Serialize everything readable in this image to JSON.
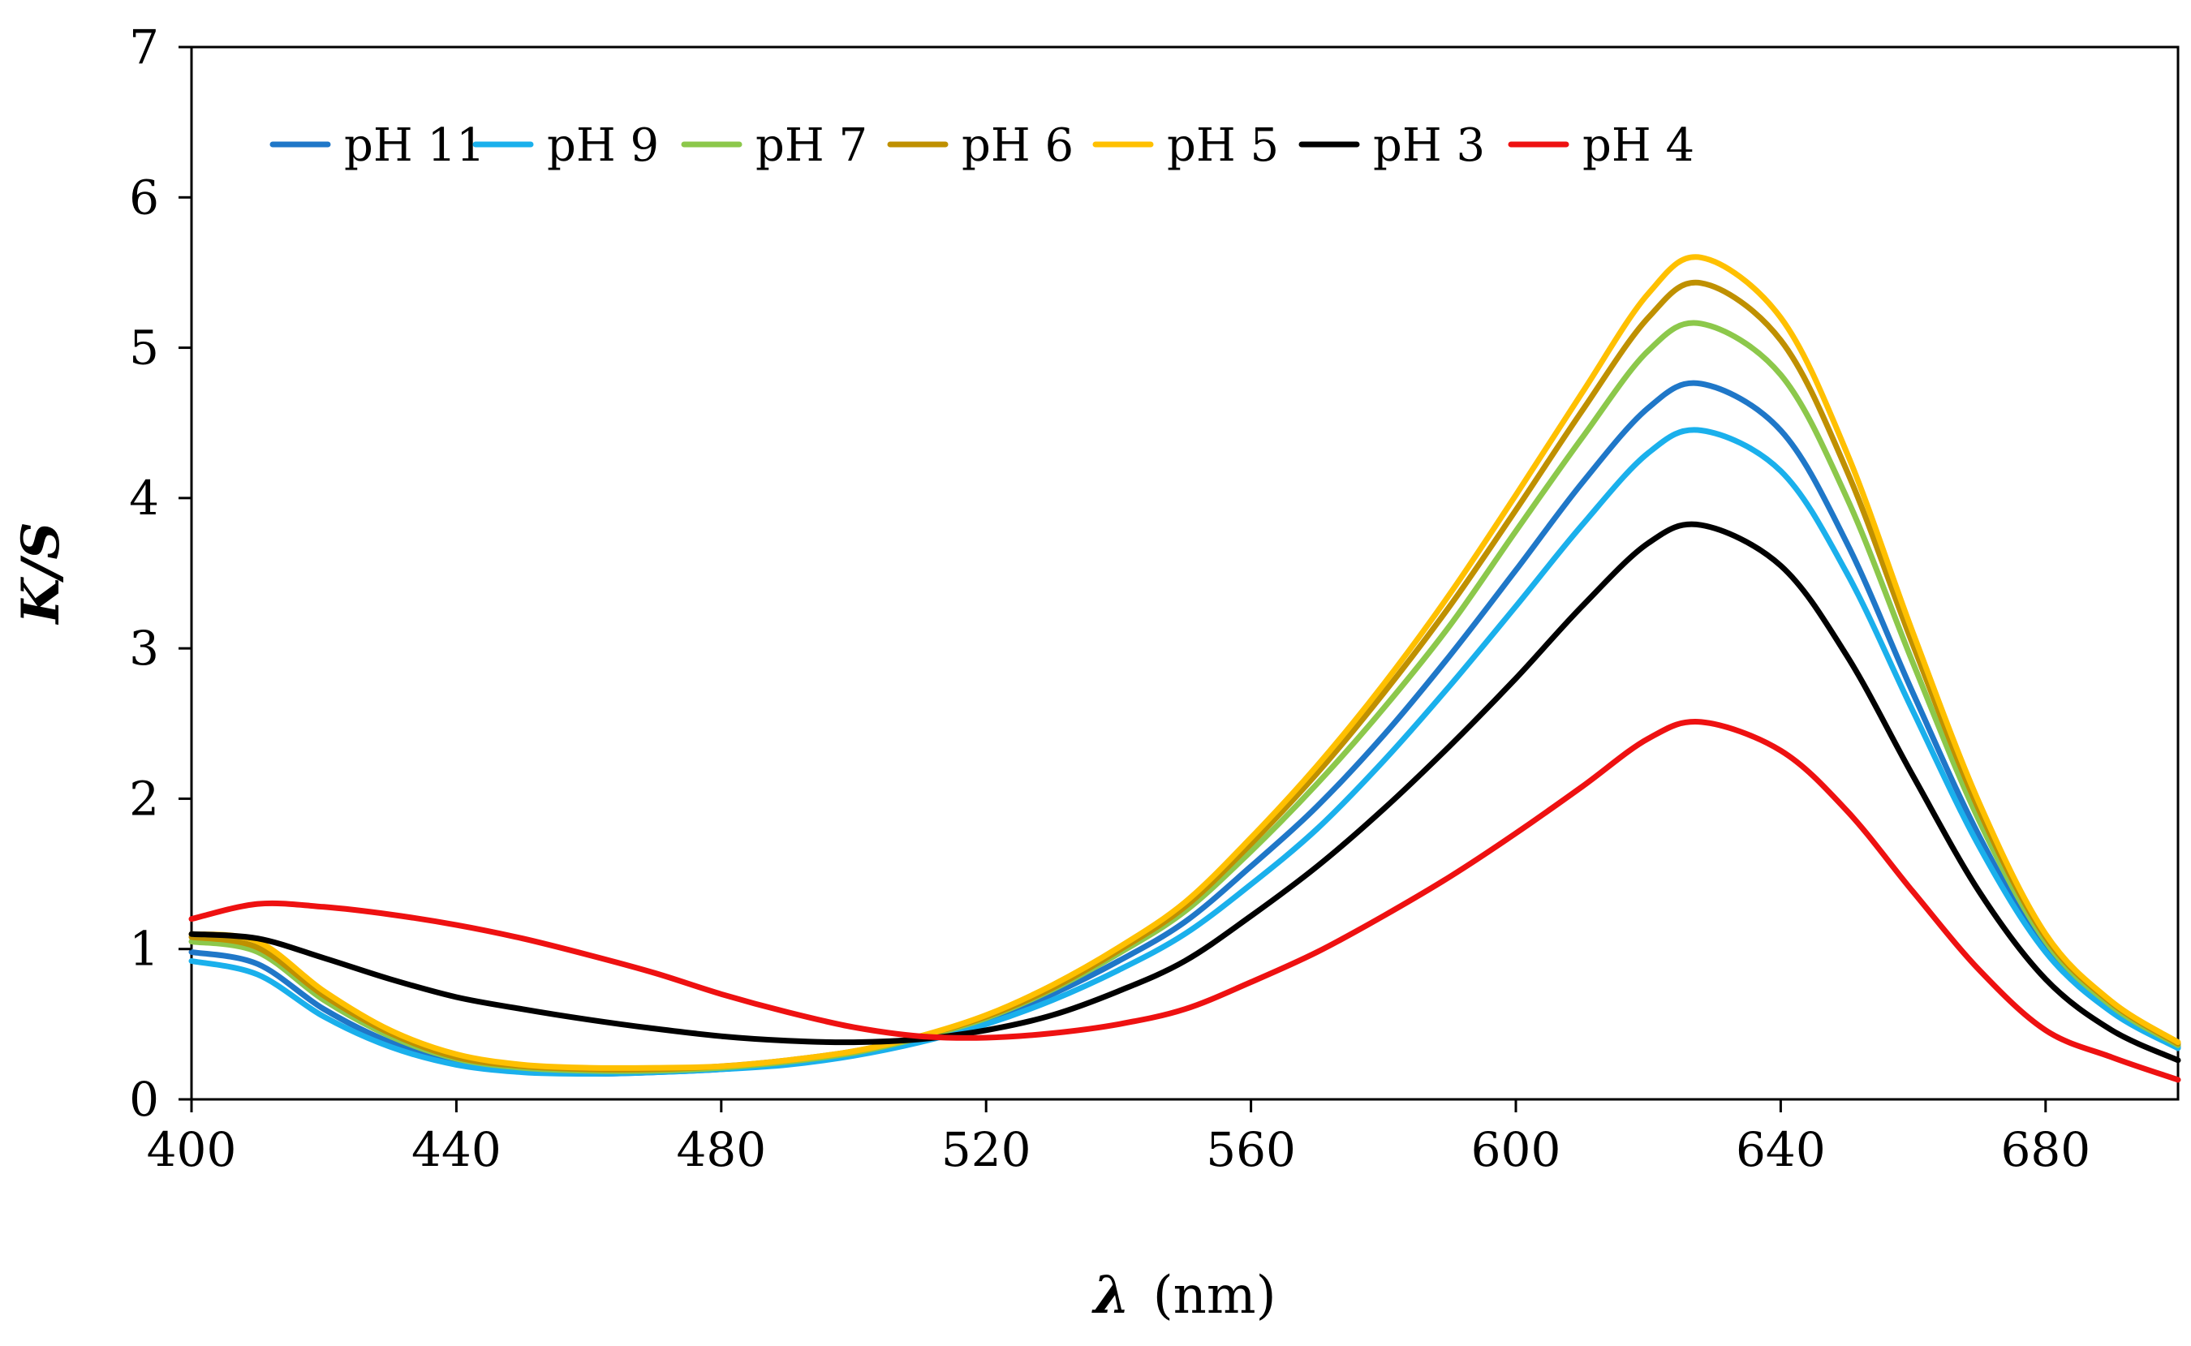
{
  "chart_data": {
    "type": "line",
    "title": "",
    "xlabel_symbol": "λ",
    "xlabel_unit": "(nm)",
    "ylabel": "K/S",
    "xlim": [
      400,
      700
    ],
    "ylim": [
      0,
      7
    ],
    "xticks": [
      400,
      440,
      480,
      520,
      560,
      600,
      640,
      680
    ],
    "yticks": [
      0,
      1,
      2,
      3,
      4,
      5,
      6,
      7
    ],
    "grid": false,
    "legend_position": "top-left",
    "x": [
      400,
      410,
      420,
      430,
      440,
      450,
      460,
      470,
      480,
      490,
      500,
      510,
      520,
      530,
      540,
      550,
      560,
      570,
      580,
      590,
      600,
      610,
      620,
      628,
      640,
      650,
      660,
      670,
      680,
      690,
      700
    ],
    "series": [
      {
        "name": "pH 11",
        "color": "#1f77c8",
        "values": [
          0.98,
          0.9,
          0.6,
          0.38,
          0.24,
          0.19,
          0.17,
          0.18,
          0.2,
          0.24,
          0.3,
          0.4,
          0.52,
          0.7,
          0.92,
          1.18,
          1.55,
          1.95,
          2.42,
          2.95,
          3.52,
          4.1,
          4.6,
          4.76,
          4.45,
          3.7,
          2.7,
          1.75,
          1.0,
          0.6,
          0.35
        ]
      },
      {
        "name": "pH 9",
        "color": "#1ab0ec",
        "values": [
          0.92,
          0.83,
          0.55,
          0.35,
          0.23,
          0.18,
          0.17,
          0.18,
          0.2,
          0.23,
          0.29,
          0.38,
          0.5,
          0.66,
          0.86,
          1.1,
          1.43,
          1.8,
          2.25,
          2.75,
          3.28,
          3.82,
          4.3,
          4.45,
          4.18,
          3.5,
          2.58,
          1.68,
          0.98,
          0.58,
          0.34
        ]
      },
      {
        "name": "pH 7",
        "color": "#8cc84b",
        "values": [
          1.05,
          0.98,
          0.66,
          0.42,
          0.27,
          0.21,
          0.19,
          0.19,
          0.21,
          0.25,
          0.31,
          0.41,
          0.54,
          0.73,
          0.97,
          1.25,
          1.65,
          2.1,
          2.6,
          3.15,
          3.78,
          4.4,
          4.98,
          5.16,
          4.82,
          4.0,
          2.9,
          1.85,
          1.05,
          0.62,
          0.36
        ]
      },
      {
        "name": "pH 6",
        "color": "#bf9000",
        "values": [
          1.08,
          1.01,
          0.69,
          0.44,
          0.28,
          0.22,
          0.2,
          0.2,
          0.22,
          0.26,
          0.32,
          0.42,
          0.55,
          0.74,
          0.99,
          1.28,
          1.7,
          2.17,
          2.7,
          3.28,
          3.92,
          4.58,
          5.2,
          5.43,
          5.05,
          4.18,
          3.02,
          1.92,
          1.08,
          0.64,
          0.37
        ]
      },
      {
        "name": "pH 5",
        "color": "#ffc000",
        "values": [
          1.1,
          1.05,
          0.72,
          0.46,
          0.3,
          0.23,
          0.21,
          0.21,
          0.22,
          0.26,
          0.32,
          0.42,
          0.56,
          0.76,
          1.01,
          1.31,
          1.74,
          2.22,
          2.76,
          3.36,
          4.02,
          4.7,
          5.36,
          5.6,
          5.2,
          4.3,
          3.1,
          1.97,
          1.1,
          0.65,
          0.38
        ]
      },
      {
        "name": "pH 3",
        "color": "#000000",
        "values": [
          1.1,
          1.07,
          0.94,
          0.8,
          0.68,
          0.6,
          0.53,
          0.47,
          0.42,
          0.39,
          0.38,
          0.4,
          0.46,
          0.56,
          0.72,
          0.92,
          1.22,
          1.55,
          1.93,
          2.35,
          2.8,
          3.28,
          3.7,
          3.82,
          3.55,
          2.95,
          2.15,
          1.38,
          0.8,
          0.46,
          0.26
        ]
      },
      {
        "name": "pH 4",
        "color": "#ee1111",
        "values": [
          1.2,
          1.3,
          1.28,
          1.23,
          1.16,
          1.07,
          0.96,
          0.84,
          0.7,
          0.58,
          0.48,
          0.42,
          0.41,
          0.44,
          0.5,
          0.6,
          0.78,
          0.98,
          1.22,
          1.48,
          1.77,
          2.08,
          2.4,
          2.51,
          2.32,
          1.92,
          1.38,
          0.86,
          0.46,
          0.28,
          0.13
        ]
      }
    ]
  }
}
